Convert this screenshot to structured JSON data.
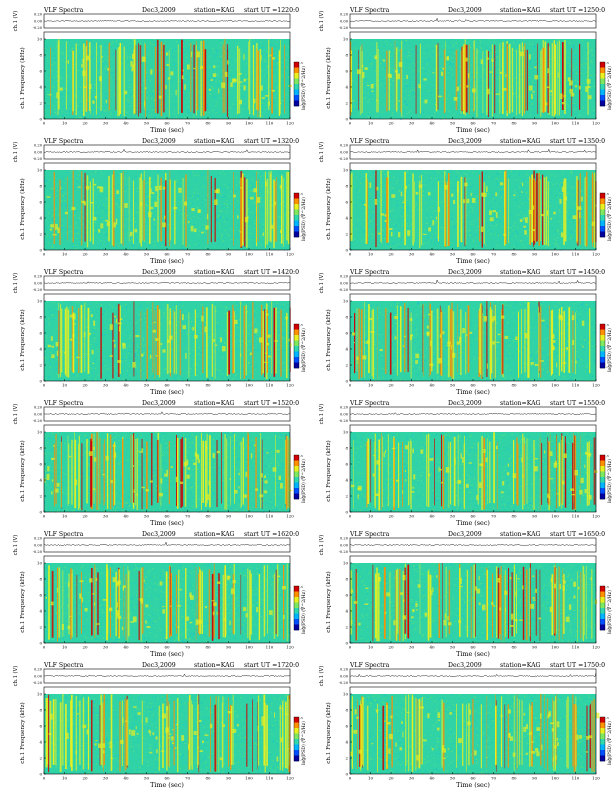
{
  "page": {
    "header": {
      "title": "VLF Spectra",
      "date": "Dec3,2009",
      "station_label": "station=KAG",
      "ut_prefix": "start UT ="
    },
    "axes": {
      "ch_label": "ch.1 (V)",
      "ch_ticks": [
        "0.20",
        "0.00",
        "-0.20"
      ],
      "spec_ylabel": "ch.1 Frequency (kHz)",
      "spec_yticks": [
        "0",
        "2",
        "4",
        "6",
        "8",
        "10"
      ],
      "xlabel": "Time (sec)",
      "xticks": [
        "0",
        "10",
        "20",
        "30",
        "40",
        "50",
        "60",
        "70",
        "80",
        "90",
        "100",
        "110",
        "120"
      ],
      "colorbar_label": "log(PSD) (V^2/Hz)",
      "colorbar_ticks": [
        "-5",
        "-6",
        "-7"
      ]
    },
    "colors": {
      "background_spec": "#2fd3a6",
      "colormap": [
        "#0000a0",
        "#0050ff",
        "#00b4ff",
        "#30d8b0",
        "#7ee860",
        "#e8f020",
        "#ff9000",
        "#d00000"
      ]
    }
  },
  "chart_data": [
    {
      "type": "heatmap",
      "start_ut": "1220:0",
      "xlim": [
        0,
        120
      ],
      "ylim": [
        0,
        10
      ],
      "zlim": [
        -7,
        -5
      ]
    },
    {
      "type": "heatmap",
      "start_ut": "1250:0",
      "xlim": [
        0,
        120
      ],
      "ylim": [
        0,
        10
      ],
      "zlim": [
        -7,
        -5
      ]
    },
    {
      "type": "heatmap",
      "start_ut": "1320:0",
      "xlim": [
        0,
        120
      ],
      "ylim": [
        0,
        10
      ],
      "zlim": [
        -7,
        -5
      ]
    },
    {
      "type": "heatmap",
      "start_ut": "1350:0",
      "xlim": [
        0,
        120
      ],
      "ylim": [
        0,
        10
      ],
      "zlim": [
        -7,
        -5
      ]
    },
    {
      "type": "heatmap",
      "start_ut": "1420:0",
      "xlim": [
        0,
        120
      ],
      "ylim": [
        0,
        10
      ],
      "zlim": [
        -7,
        -5
      ]
    },
    {
      "type": "heatmap",
      "start_ut": "1450:0",
      "xlim": [
        0,
        120
      ],
      "ylim": [
        0,
        10
      ],
      "zlim": [
        -7,
        -5
      ]
    },
    {
      "type": "heatmap",
      "start_ut": "1520:0",
      "xlim": [
        0,
        120
      ],
      "ylim": [
        0,
        10
      ],
      "zlim": [
        -7,
        -5
      ]
    },
    {
      "type": "heatmap",
      "start_ut": "1550:0",
      "xlim": [
        0,
        120
      ],
      "ylim": [
        0,
        10
      ],
      "zlim": [
        -7,
        -5
      ]
    },
    {
      "type": "heatmap",
      "start_ut": "1620:0",
      "xlim": [
        0,
        120
      ],
      "ylim": [
        0,
        10
      ],
      "zlim": [
        -7,
        -5
      ]
    },
    {
      "type": "heatmap",
      "start_ut": "1650:0",
      "xlim": [
        0,
        120
      ],
      "ylim": [
        0,
        10
      ],
      "zlim": [
        -7,
        -5
      ]
    },
    {
      "type": "heatmap",
      "start_ut": "1720:0",
      "xlim": [
        0,
        120
      ],
      "ylim": [
        0,
        10
      ],
      "zlim": [
        -7,
        -5
      ]
    },
    {
      "type": "heatmap",
      "start_ut": "1750:0",
      "xlim": [
        0,
        120
      ],
      "ylim": [
        0,
        10
      ],
      "zlim": [
        -7,
        -5
      ]
    }
  ]
}
